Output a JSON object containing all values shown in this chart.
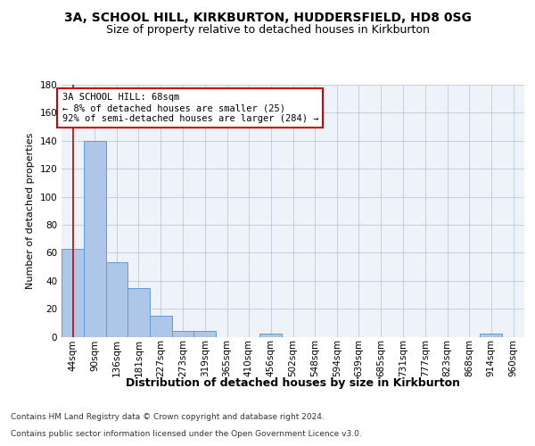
{
  "title1": "3A, SCHOOL HILL, KIRKBURTON, HUDDERSFIELD, HD8 0SG",
  "title2": "Size of property relative to detached houses in Kirkburton",
  "xlabel": "Distribution of detached houses by size in Kirkburton",
  "ylabel": "Number of detached properties",
  "footer1": "Contains HM Land Registry data © Crown copyright and database right 2024.",
  "footer2": "Contains public sector information licensed under the Open Government Licence v3.0.",
  "bin_labels": [
    "44sqm",
    "90sqm",
    "136sqm",
    "181sqm",
    "227sqm",
    "273sqm",
    "319sqm",
    "365sqm",
    "410sqm",
    "456sqm",
    "502sqm",
    "548sqm",
    "594sqm",
    "639sqm",
    "685sqm",
    "731sqm",
    "777sqm",
    "823sqm",
    "868sqm",
    "914sqm",
    "960sqm"
  ],
  "bin_edges": [
    44,
    90,
    136,
    181,
    227,
    273,
    319,
    365,
    410,
    456,
    502,
    548,
    594,
    639,
    685,
    731,
    777,
    823,
    868,
    914,
    960
  ],
  "bar_heights": [
    63,
    140,
    53,
    35,
    15,
    4,
    4,
    0,
    0,
    2,
    0,
    0,
    0,
    0,
    0,
    0,
    0,
    0,
    0,
    2,
    0
  ],
  "bar_color": "#aec6e8",
  "bar_edge_color": "#5b9bd5",
  "bg_color": "#eef3fa",
  "grid_color": "#c0c8d8",
  "property_line_x": 68,
  "property_line_color": "#cc0000",
  "annotation_line1": "3A SCHOOL HILL: 68sqm",
  "annotation_line2": "← 8% of detached houses are smaller (25)",
  "annotation_line3": "92% of semi-detached houses are larger (284) →",
  "annotation_box_color": "#ffffff",
  "annotation_box_edge_color": "#cc0000",
  "ylim": [
    0,
    180
  ],
  "yticks": [
    0,
    20,
    40,
    60,
    80,
    100,
    120,
    140,
    160,
    180
  ],
  "title1_fontsize": 10,
  "title2_fontsize": 9,
  "xlabel_fontsize": 9,
  "ylabel_fontsize": 8,
  "tick_fontsize": 7.5,
  "annotation_fontsize": 7.5,
  "footer_fontsize": 6.5
}
